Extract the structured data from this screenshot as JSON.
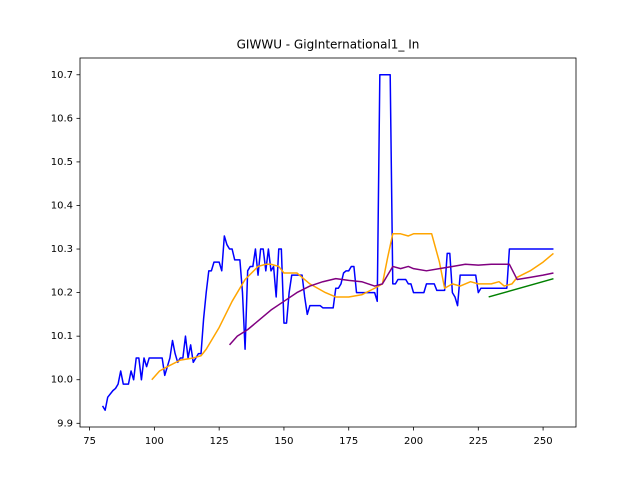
{
  "chart_data": {
    "type": "line",
    "title": "GIWWU - GigInternational1_ In",
    "xlim": [
      71.3,
      262.7
    ],
    "ylim": [
      9.8915,
      10.7385
    ],
    "xticks": [
      75,
      100,
      125,
      150,
      175,
      200,
      225,
      250
    ],
    "yticks": [
      9.9,
      {
        "value": 10,
        "label": "10.0"
      },
      10.1,
      10.2,
      10.3,
      10.4,
      10.5,
      10.6,
      10.7
    ],
    "series": [
      {
        "color": "#0000ff",
        "x": [
          80,
          81,
          82,
          84,
          85,
          86,
          87,
          88,
          90,
          91,
          92,
          93,
          94,
          95,
          96,
          97,
          98,
          100,
          102,
          103,
          104,
          105,
          106,
          107,
          108,
          109,
          110,
          111,
          112,
          113,
          114,
          115,
          116,
          117,
          118,
          119,
          120,
          121,
          122,
          123,
          125,
          126,
          127,
          128,
          129,
          130,
          131,
          133,
          134,
          135,
          136,
          137,
          138,
          139,
          140,
          141,
          142,
          143,
          144,
          145,
          146,
          147,
          148,
          149,
          150,
          151,
          152,
          153,
          155,
          157,
          158,
          159,
          160,
          162,
          164,
          165,
          167,
          169,
          170,
          171,
          172,
          173,
          174,
          175,
          176,
          177,
          178,
          180,
          183,
          185,
          186,
          187,
          190,
          191,
          192,
          193,
          194,
          197,
          198,
          199,
          200,
          204,
          205,
          208,
          209,
          212,
          213,
          214,
          215,
          216,
          217,
          218,
          220,
          224,
          225,
          226,
          228,
          236,
          237,
          254
        ],
        "values": [
          9.94,
          9.93,
          9.96,
          9.975,
          9.98,
          9.99,
          10.02,
          9.99,
          9.99,
          10.02,
          10.0,
          10.05,
          10.05,
          10.0,
          10.05,
          10.03,
          10.05,
          10.05,
          10.05,
          10.05,
          10.01,
          10.03,
          10.05,
          10.09,
          10.06,
          10.04,
          10.05,
          10.05,
          10.1,
          10.05,
          10.08,
          10.04,
          10.05,
          10.06,
          10.06,
          10.14,
          10.2,
          10.25,
          10.25,
          10.27,
          10.27,
          10.25,
          10.33,
          10.31,
          10.3,
          10.3,
          10.275,
          10.275,
          10.2,
          10.07,
          10.25,
          10.26,
          10.26,
          10.3,
          10.24,
          10.3,
          10.3,
          10.25,
          10.3,
          10.25,
          10.26,
          10.19,
          10.3,
          10.3,
          10.13,
          10.13,
          10.2,
          10.24,
          10.24,
          10.24,
          10.19,
          10.15,
          10.17,
          10.17,
          10.17,
          10.165,
          10.165,
          10.165,
          10.21,
          10.21,
          10.22,
          10.245,
          10.25,
          10.25,
          10.26,
          10.26,
          10.2,
          10.2,
          10.2,
          10.2,
          10.18,
          10.7,
          10.7,
          10.7,
          10.22,
          10.22,
          10.23,
          10.23,
          10.22,
          10.22,
          10.2,
          10.2,
          10.22,
          10.22,
          10.205,
          10.205,
          10.29,
          10.29,
          10.2,
          10.19,
          10.17,
          10.24,
          10.24,
          10.24,
          10.2,
          10.21,
          10.21,
          10.21,
          10.3,
          10.3
        ]
      },
      {
        "color": "#ffa500",
        "x": [
          99,
          102,
          105,
          110,
          115,
          118,
          120,
          125,
          130,
          135,
          140,
          143,
          145,
          148,
          150,
          153,
          155,
          158,
          160,
          163,
          166,
          170,
          175,
          180,
          185,
          188,
          190,
          192,
          195,
          198,
          200,
          205,
          207,
          210,
          212,
          215,
          218,
          222,
          225,
          230,
          233,
          235,
          238,
          240,
          245,
          250,
          254
        ],
        "values": [
          10.0,
          10.02,
          10.03,
          10.045,
          10.05,
          10.055,
          10.07,
          10.12,
          10.18,
          10.23,
          10.26,
          10.265,
          10.265,
          10.26,
          10.245,
          10.245,
          10.245,
          10.23,
          10.22,
          10.21,
          10.2,
          10.19,
          10.19,
          10.195,
          10.21,
          10.22,
          10.28,
          10.335,
          10.335,
          10.33,
          10.335,
          10.335,
          10.335,
          10.27,
          10.21,
          10.22,
          10.215,
          10.225,
          10.22,
          10.22,
          10.225,
          10.215,
          10.22,
          10.235,
          10.25,
          10.27,
          10.29
        ]
      },
      {
        "color": "#800080",
        "x": [
          129,
          132,
          136,
          140,
          145,
          150,
          155,
          160,
          165,
          170,
          175,
          180,
          185,
          188,
          190,
          192,
          195,
          198,
          200,
          205,
          210,
          215,
          220,
          225,
          230,
          237,
          240,
          245,
          250,
          254
        ],
        "values": [
          10.08,
          10.1,
          10.115,
          10.135,
          10.16,
          10.18,
          10.2,
          10.215,
          10.225,
          10.232,
          10.228,
          10.225,
          10.215,
          10.22,
          10.24,
          10.26,
          10.255,
          10.26,
          10.255,
          10.25,
          10.255,
          10.26,
          10.265,
          10.263,
          10.265,
          10.265,
          10.23,
          10.235,
          10.24,
          10.245
        ]
      },
      {
        "color": "#008000",
        "x": [
          229,
          254
        ],
        "values": [
          10.19,
          10.232
        ]
      }
    ]
  }
}
